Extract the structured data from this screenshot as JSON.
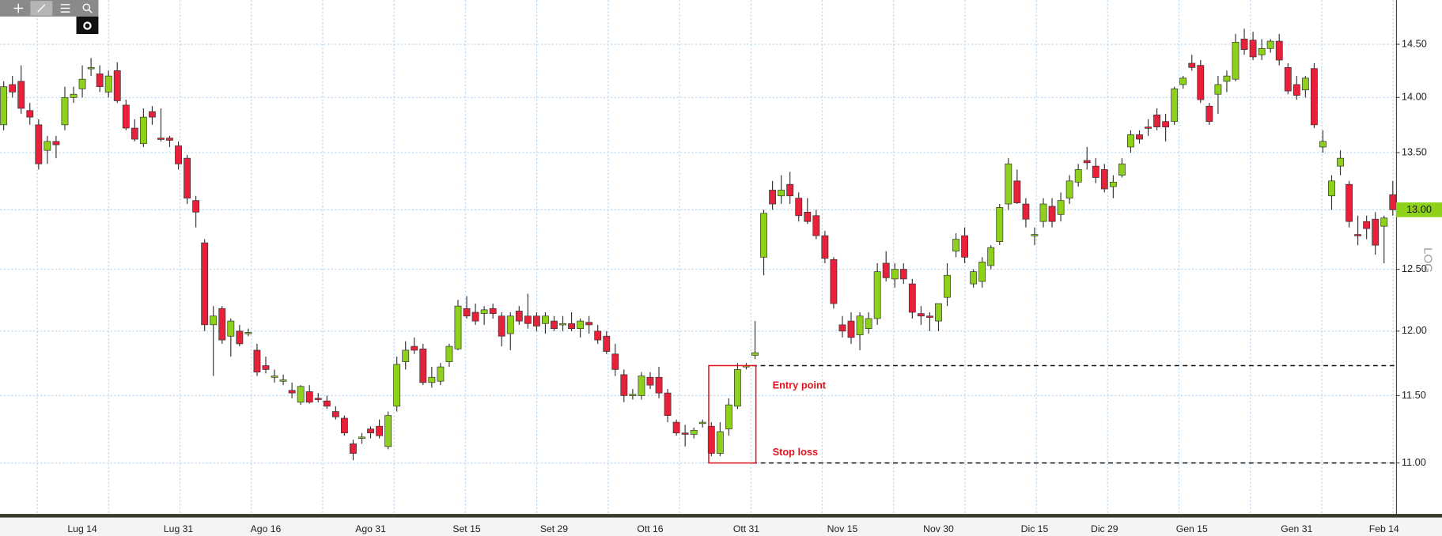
{
  "chart_data": {
    "type": "candlestick",
    "log_scale": true,
    "scale_label": "LOG",
    "grid": true,
    "up_color": "#8ed11a",
    "down_color": "#e8203a",
    "categories": [
      null,
      null,
      null,
      null,
      null,
      null,
      null,
      null,
      null,
      "Lug 14",
      null,
      null,
      null,
      null,
      null,
      null,
      null,
      null,
      null,
      null,
      "Lug 31",
      null,
      null,
      null,
      null,
      null,
      null,
      null,
      null,
      null,
      "Ago 16",
      null,
      null,
      null,
      null,
      null,
      null,
      null,
      null,
      null,
      null,
      null,
      "Ago 31",
      null,
      null,
      null,
      null,
      null,
      null,
      null,
      null,
      null,
      null,
      "Set 15",
      null,
      null,
      null,
      null,
      null,
      null,
      null,
      null,
      null,
      "Set 29",
      null,
      null,
      null,
      null,
      null,
      null,
      null,
      null,
      null,
      null,
      "Ott 16",
      null,
      null,
      null,
      null,
      null,
      null,
      null,
      null,
      null,
      null,
      "Ott 31",
      null,
      null,
      null,
      null,
      null,
      null,
      null,
      null,
      null,
      null,
      "Nov 15",
      null,
      null,
      null,
      null,
      null,
      null,
      null,
      null,
      null,
      null,
      "Nov 30",
      null,
      null,
      null,
      null,
      null,
      null,
      null,
      null,
      null,
      null,
      "Dic 15",
      null,
      null,
      null,
      null,
      null,
      null,
      null,
      "Dic 29",
      null,
      null,
      null,
      null,
      null,
      null,
      null,
      null,
      null,
      "Gen 15",
      null,
      null,
      null,
      null,
      null,
      null,
      null,
      null,
      null,
      null,
      null,
      "Gen 31",
      null,
      null,
      null,
      null,
      null,
      null,
      null,
      null,
      null,
      "Feb 14",
      null
    ],
    "open": [
      13.75,
      14.12,
      14.15,
      13.88,
      13.75,
      13.52,
      13.6,
      13.75,
      14.0,
      14.08,
      14.27,
      14.22,
      14.05,
      14.25,
      13.93,
      13.72,
      13.58,
      13.87,
      13.63,
      13.63,
      13.56,
      13.45,
      13.08,
      12.72,
      12.05,
      12.18,
      11.96,
      12.0,
      11.98,
      11.85,
      11.73,
      11.64,
      11.61,
      11.54,
      11.45,
      11.53,
      11.48,
      11.46,
      11.38,
      11.33,
      11.14,
      11.18,
      11.25,
      11.27,
      11.12,
      11.42,
      11.76,
      11.88,
      11.86,
      11.6,
      11.61,
      11.76,
      11.86,
      12.18,
      12.15,
      12.14,
      12.18,
      12.12,
      11.98,
      12.16,
      12.12,
      12.12,
      12.06,
      12.08,
      12.05,
      12.06,
      12.02,
      12.07,
      12.0,
      11.96,
      11.82,
      11.66,
      11.5,
      11.5,
      11.64,
      11.64,
      11.52,
      11.3,
      11.22,
      11.21,
      11.29,
      11.27,
      11.07,
      11.25,
      11.42,
      11.72,
      11.81,
      12.6,
      13.17,
      13.12,
      13.22,
      13.1,
      12.98,
      12.95,
      12.78,
      12.58,
      12.05,
      12.08,
      11.97,
      12.02,
      12.1,
      12.55,
      12.42,
      12.5,
      12.38,
      12.14,
      12.12,
      12.08,
      12.27,
      12.65,
      12.78,
      12.38,
      12.4,
      12.53,
      12.73,
      13.05,
      13.25,
      13.05,
      12.78,
      12.9,
      13.03,
      12.96,
      13.1,
      13.24,
      13.43,
      13.38,
      13.35,
      13.2,
      13.3,
      13.55,
      13.66,
      13.73,
      13.84,
      13.78,
      13.78,
      14.12,
      14.32,
      14.3,
      13.92,
      14.03,
      14.15,
      14.17,
      14.55,
      14.54,
      14.4,
      14.46,
      14.53,
      14.28,
      14.12,
      14.07,
      14.27,
      13.55,
      13.12,
      13.38,
      13.22,
      12.79,
      12.9,
      12.92,
      12.86,
      13.13
    ],
    "high": [
      14.15,
      14.2,
      14.3,
      13.95,
      13.8,
      13.65,
      13.65,
      14.1,
      14.1,
      14.3,
      14.37,
      14.3,
      14.25,
      14.33,
      13.98,
      13.8,
      13.9,
      13.92,
      13.9,
      13.65,
      13.6,
      13.48,
      13.12,
      12.75,
      12.2,
      12.2,
      12.1,
      12.05,
      12.02,
      11.9,
      11.8,
      11.7,
      11.66,
      11.6,
      11.58,
      11.58,
      11.52,
      11.5,
      11.42,
      11.35,
      11.17,
      11.22,
      11.27,
      11.32,
      11.38,
      11.8,
      11.92,
      11.95,
      11.9,
      11.72,
      11.75,
      11.9,
      12.25,
      12.28,
      12.22,
      12.2,
      12.22,
      12.15,
      12.15,
      12.2,
      12.3,
      12.15,
      12.15,
      12.12,
      12.12,
      12.15,
      12.1,
      12.12,
      12.05,
      12.0,
      11.9,
      11.7,
      11.55,
      11.68,
      11.68,
      11.72,
      11.55,
      11.32,
      11.28,
      11.26,
      11.32,
      11.3,
      11.3,
      11.48,
      11.75,
      11.75,
      12.08,
      13.0,
      13.25,
      13.3,
      13.33,
      13.15,
      13.1,
      13.0,
      12.82,
      12.6,
      12.12,
      12.15,
      12.15,
      12.15,
      12.55,
      12.65,
      12.55,
      12.55,
      12.42,
      12.2,
      12.15,
      12.22,
      12.55,
      12.8,
      12.85,
      12.5,
      12.6,
      12.7,
      13.05,
      13.45,
      13.35,
      13.1,
      12.85,
      13.1,
      13.1,
      13.15,
      13.3,
      13.4,
      13.55,
      13.45,
      13.4,
      13.3,
      13.45,
      13.7,
      13.7,
      13.8,
      13.9,
      13.85,
      14.1,
      14.2,
      14.4,
      14.35,
      13.95,
      14.2,
      14.25,
      14.6,
      14.65,
      14.62,
      14.55,
      14.55,
      14.6,
      14.32,
      14.2,
      14.2,
      14.32,
      13.7,
      13.3,
      13.52,
      13.25,
      12.95,
      12.95,
      12.98,
      12.95,
      13.25
    ],
    "low": [
      13.7,
      14.0,
      13.85,
      13.75,
      13.35,
      13.4,
      13.45,
      13.7,
      13.95,
      14.0,
      14.2,
      14.05,
      14.0,
      13.95,
      13.7,
      13.6,
      13.55,
      13.75,
      13.6,
      13.55,
      13.35,
      13.05,
      12.85,
      12.0,
      11.65,
      11.9,
      11.8,
      11.88,
      11.96,
      11.65,
      11.67,
      11.6,
      11.58,
      11.48,
      11.43,
      11.44,
      11.45,
      11.4,
      11.32,
      11.2,
      11.02,
      11.14,
      11.18,
      11.18,
      11.1,
      11.38,
      11.7,
      11.82,
      11.58,
      11.56,
      11.58,
      11.72,
      11.85,
      12.1,
      12.05,
      12.05,
      12.1,
      11.88,
      11.85,
      12.05,
      12.02,
      12.0,
      11.98,
      12.0,
      12.0,
      12.0,
      11.95,
      11.98,
      11.9,
      11.82,
      11.65,
      11.45,
      11.47,
      11.47,
      11.55,
      11.48,
      11.3,
      11.2,
      11.12,
      11.18,
      11.26,
      11.05,
      11.05,
      11.2,
      11.4,
      11.7,
      11.78,
      12.45,
      13.0,
      13.05,
      13.05,
      12.9,
      12.88,
      12.75,
      12.55,
      12.18,
      11.95,
      11.9,
      11.85,
      11.98,
      12.05,
      12.4,
      12.35,
      12.38,
      12.1,
      12.05,
      12.0,
      12.0,
      12.2,
      12.6,
      12.55,
      12.35,
      12.35,
      12.5,
      12.7,
      13.0,
      13.05,
      12.85,
      12.7,
      12.85,
      12.85,
      12.9,
      13.05,
      13.2,
      13.35,
      13.23,
      13.15,
      13.1,
      13.28,
      13.5,
      13.58,
      13.65,
      13.7,
      13.6,
      13.75,
      14.08,
      14.25,
      13.95,
      13.75,
      13.85,
      14.05,
      14.15,
      14.4,
      14.35,
      14.35,
      14.42,
      14.3,
      14.03,
      13.98,
      14.0,
      13.72,
      13.5,
      13.0,
      13.3,
      12.85,
      12.7,
      12.75,
      12.62,
      12.55,
      12.95
    ],
    "close": [
      14.1,
      14.05,
      13.9,
      13.82,
      13.4,
      13.6,
      13.57,
      14.0,
      14.03,
      14.17,
      14.28,
      14.1,
      14.2,
      13.97,
      13.72,
      13.62,
      13.82,
      13.82,
      13.62,
      13.61,
      13.4,
      13.1,
      12.98,
      12.05,
      12.12,
      11.93,
      12.08,
      11.9,
      11.99,
      11.68,
      11.7,
      11.65,
      11.62,
      11.52,
      11.57,
      11.45,
      11.47,
      11.42,
      11.34,
      11.22,
      11.07,
      11.19,
      11.22,
      11.2,
      11.35,
      11.74,
      11.85,
      11.85,
      11.6,
      11.64,
      11.72,
      11.88,
      12.2,
      12.12,
      12.08,
      12.17,
      12.14,
      11.96,
      12.12,
      12.08,
      12.06,
      12.04,
      12.12,
      12.02,
      12.06,
      12.02,
      12.08,
      12.05,
      11.93,
      11.84,
      11.7,
      11.5,
      11.51,
      11.65,
      11.58,
      11.52,
      11.35,
      11.22,
      11.21,
      11.24,
      11.3,
      11.07,
      11.23,
      11.43,
      11.7,
      11.73,
      11.83,
      12.97,
      13.05,
      13.17,
      13.12,
      12.95,
      12.9,
      12.78,
      12.59,
      12.22,
      12.0,
      11.95,
      12.12,
      12.1,
      12.48,
      12.43,
      12.5,
      12.42,
      12.15,
      12.12,
      12.11,
      12.22,
      12.45,
      12.75,
      12.6,
      12.48,
      12.56,
      12.68,
      13.02,
      13.4,
      13.06,
      12.92,
      12.79,
      13.05,
      12.9,
      13.08,
      13.25,
      13.35,
      13.41,
      13.28,
      13.18,
      13.24,
      13.4,
      13.66,
      13.62,
      13.72,
      13.73,
      13.73,
      14.08,
      14.18,
      14.28,
      13.98,
      13.78,
      14.12,
      14.2,
      14.52,
      14.45,
      14.38,
      14.46,
      14.53,
      14.35,
      14.06,
      14.02,
      14.18,
      13.75,
      13.6,
      13.25,
      13.45,
      12.9,
      12.78,
      12.84,
      12.7,
      12.93,
      13.0
    ],
    "ylim": [
      10.63,
      14.93
    ],
    "yticks": [
      {
        "value": 11,
        "label": "11.00"
      },
      {
        "value": 11.5,
        "label": "11.50"
      },
      {
        "value": 12,
        "label": "12.00"
      },
      {
        "value": 12.5,
        "label": "12.50"
      },
      {
        "value": 13,
        "label": "13.00"
      },
      {
        "value": 13.5,
        "label": "13.50"
      },
      {
        "value": 14,
        "label": "14.00"
      },
      {
        "value": 14.5,
        "label": "14.50"
      }
    ],
    "last_price": {
      "value": 13,
      "label": "13.00",
      "color": "#8ed11a"
    },
    "annotations": [
      {
        "text": "Entry point",
        "value": 11.73
      },
      {
        "text": "Stop loss",
        "value": 11.0
      }
    ]
  }
}
